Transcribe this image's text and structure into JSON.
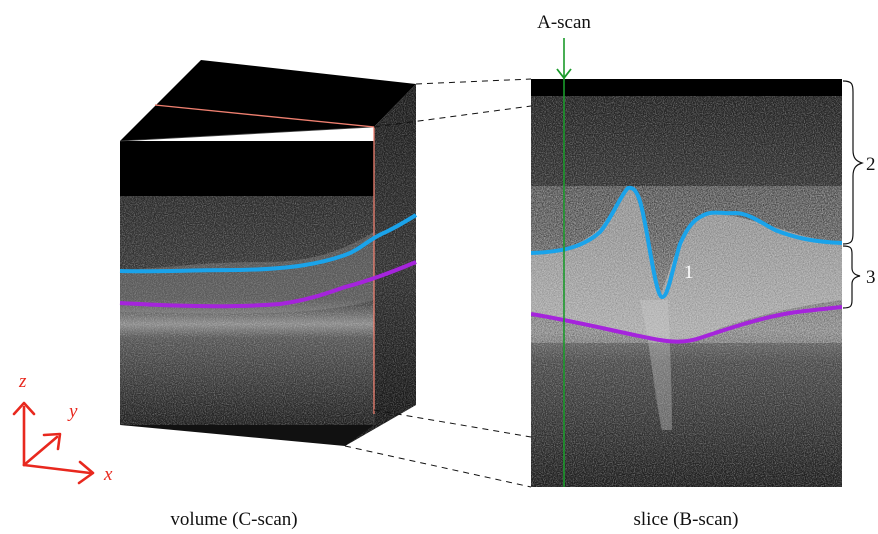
{
  "labels": {
    "a_scan": "A-scan",
    "volume": "volume (C-scan)",
    "slice": "slice (B-scan)",
    "region_1": "1",
    "region_2": "2",
    "region_3": "3"
  },
  "axes": {
    "x": "x",
    "y": "y",
    "z": "z"
  },
  "colors": {
    "axis": "#e8281e",
    "a_scan_line": "#1a9a2a",
    "upper_boundary": "#1aa3ea",
    "lower_boundary": "#a524dc",
    "cut_plane": "#f08070",
    "background_scan": "#000000"
  }
}
